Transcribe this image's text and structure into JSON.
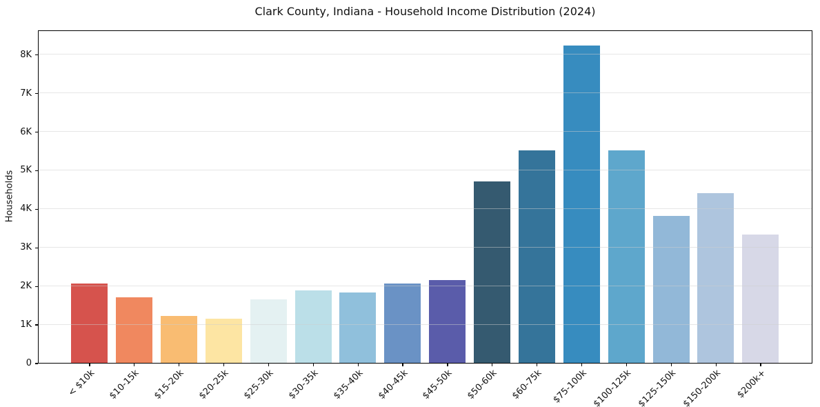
{
  "chart_data": {
    "type": "bar",
    "title": "Clark County, Indiana - Household Income Distribution (2024)",
    "xlabel": "",
    "ylabel": "Households",
    "categories": [
      "< $10k",
      "$10-15k",
      "$15-20k",
      "$20-25k",
      "$25-30k",
      "$30-35k",
      "$35-40k",
      "$40-45k",
      "$45-50k",
      "$50-60k",
      "$60-75k",
      "$75-100k",
      "$100-125k",
      "$125-150k",
      "$150-200k",
      "$200k+"
    ],
    "values": [
      2050,
      1700,
      1220,
      1150,
      1650,
      1880,
      1830,
      2060,
      2150,
      4700,
      5510,
      8220,
      5510,
      3810,
      4400,
      3330
    ],
    "bar_colors": [
      "#d6534d",
      "#f0885f",
      "#f9bc72",
      "#fde5a3",
      "#e4f1f2",
      "#bbdfe8",
      "#90c0dc",
      "#6a92c5",
      "#5a5caa",
      "#355a70",
      "#35749a",
      "#378cbf",
      "#5ea7cc",
      "#92b8d8",
      "#aec5de",
      "#d7d8e7"
    ],
    "ylim": [
      0,
      8640
    ],
    "yticks": {
      "values": [
        0,
        1000,
        2000,
        3000,
        4000,
        5000,
        6000,
        7000,
        8000
      ],
      "labels": [
        "0",
        "1K",
        "2K",
        "3K",
        "4K",
        "5K",
        "6K",
        "7K",
        "8K"
      ]
    },
    "grid": "horizontal, drawn over bars",
    "legend": "none",
    "frame": "full box, black spines"
  }
}
